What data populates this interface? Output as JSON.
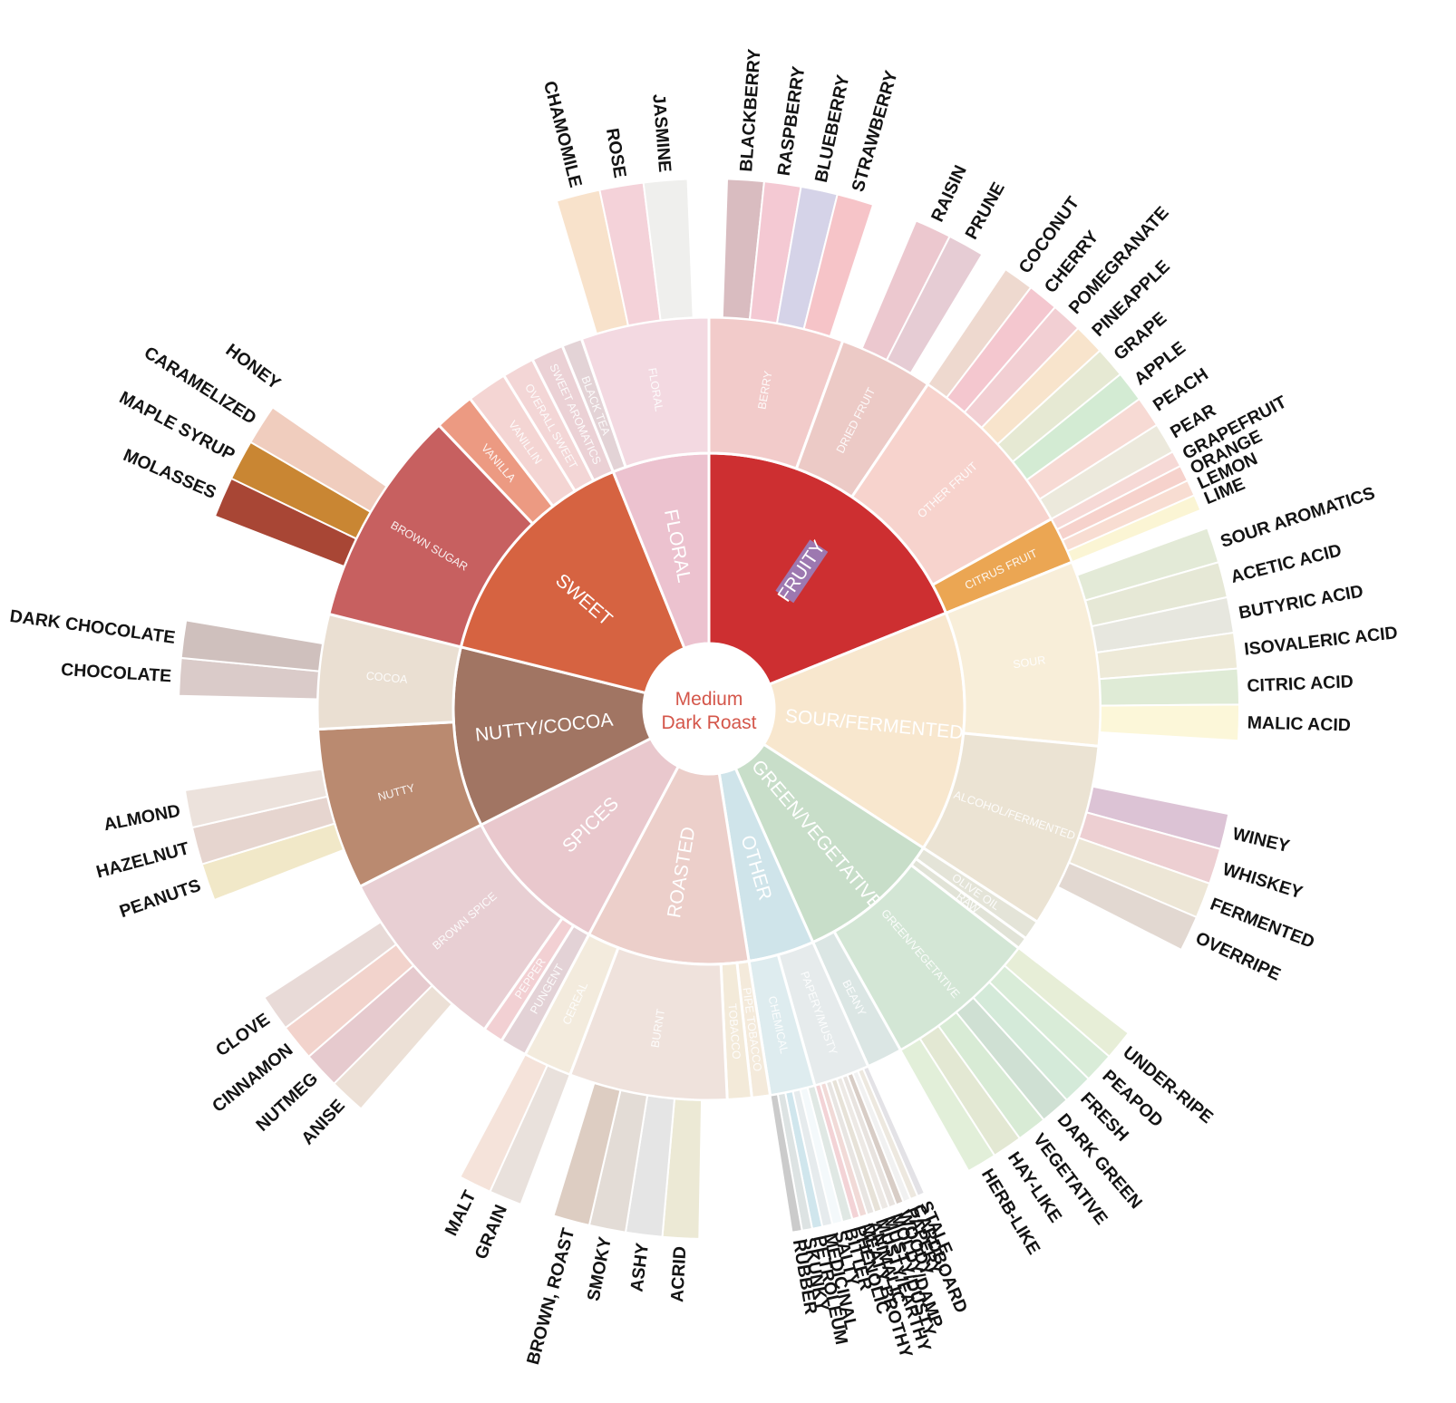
{
  "center": {
    "line1": "Medium",
    "line2": "Dark Roast"
  },
  "wheel": [
    {
      "name": "FRUITY",
      "color": "#cd2f31",
      "highlight": true,
      "highlight_color": "#9d78b0",
      "subs": [
        {
          "name": "BERRY",
          "color": "#f2cbca",
          "leaves": [
            {
              "name": "BLACKBERRY",
              "color": "#d9bcc0"
            },
            {
              "name": "RASPBERRY",
              "color": "#f4c9d3"
            },
            {
              "name": "BLUEBERRY",
              "color": "#d5d3e8"
            },
            {
              "name": "STRAWBERRY",
              "color": "#f6c4c8"
            }
          ]
        },
        {
          "name": "DRIED FRUIT",
          "color": "#eccac6",
          "leaves": [
            {
              "name": "RAISIN",
              "color": "#ecc8cf"
            },
            {
              "name": "PRUNE",
              "color": "#e6ccd4"
            }
          ]
        },
        {
          "name": "OTHER FRUIT",
          "color": "#f7d3cd",
          "leaves": [
            {
              "name": "COCONUT",
              "color": "#eed9cf"
            },
            {
              "name": "CHERRY",
              "color": "#f4c7cf"
            },
            {
              "name": "POMEGRANATE",
              "color": "#f2cfd3"
            },
            {
              "name": "PINEAPPLE",
              "color": "#f8e4cc"
            },
            {
              "name": "GRAPE",
              "color": "#e6e9d3"
            },
            {
              "name": "APPLE",
              "color": "#d3ebd3"
            },
            {
              "name": "PEACH",
              "color": "#f7dad4"
            },
            {
              "name": "PEAR",
              "color": "#ece9dc"
            }
          ]
        },
        {
          "name": "CITRUS FRUIT",
          "color": "#eba653",
          "leaves": [
            {
              "name": "GRAPEFRUIT",
              "color": "#f6d9d6"
            },
            {
              "name": "ORANGE",
              "color": "#f6d2cc"
            },
            {
              "name": "LEMON",
              "color": "#f8ddd2"
            },
            {
              "name": "LIME",
              "color": "#fbf5d4"
            }
          ]
        }
      ]
    },
    {
      "name": "SOUR/FERMENTED",
      "color": "#f8e7ce",
      "subs": [
        {
          "name": "SOUR",
          "color": "#f8eed9",
          "leaves": [
            {
              "name": "SOUR AROMATICS",
              "color": "#e3ead7"
            },
            {
              "name": "ACETIC ACID",
              "color": "#e6e8d6"
            },
            {
              "name": "BUTYRIC ACID",
              "color": "#e7e7df"
            },
            {
              "name": "ISOVALERIC ACID",
              "color": "#eeead8"
            },
            {
              "name": "CITRIC ACID",
              "color": "#dfebd6"
            },
            {
              "name": "MALIC ACID",
              "color": "#fcf7d9"
            }
          ]
        },
        {
          "name": "ALCOHOL/FERMENTED",
          "color": "#ebe3d3",
          "leaves": [
            {
              "name": "WINEY",
              "color": "#dcc3d5"
            },
            {
              "name": "WHISKEY",
              "color": "#edcfd2"
            },
            {
              "name": "FERMENTED",
              "color": "#ede6d6"
            },
            {
              "name": "OVERRIPE",
              "color": "#e2d8d1"
            }
          ]
        }
      ]
    },
    {
      "name": "GREEN/VEGETATIVE",
      "color": "#c8dec9",
      "subs": [
        {
          "name": "OLIVE OIL",
          "color": "#e4e4d8",
          "leaves": []
        },
        {
          "name": "RAW",
          "color": "#e1e3d7",
          "leaves": []
        },
        {
          "name": "GREEN/VEGETATIVE",
          "color": "#d3e6d5",
          "leaves": [
            {
              "name": "UNDER-RIPE",
              "color": "#e7eed7"
            },
            {
              "name": "PEAPOD",
              "color": "#d9ecd8"
            },
            {
              "name": "FRESH",
              "color": "#d4ead9"
            },
            {
              "name": "DARK GREEN",
              "color": "#cfe0d3"
            },
            {
              "name": "VEGETATIVE",
              "color": "#d8ebd5"
            },
            {
              "name": "HAY-LIKE",
              "color": "#e3e8d3"
            },
            {
              "name": "HERB-LIKE",
              "color": "#e2efd9"
            }
          ]
        },
        {
          "name": "BEANY",
          "color": "#dbe6e4",
          "leaves": []
        }
      ]
    },
    {
      "name": "OTHER",
      "color": "#cfe4ea",
      "subs": [
        {
          "name": "PAPERY/MUSTY",
          "color": "#e6ebec",
          "leaves": [
            {
              "name": "STALE",
              "color": "#e3e2e6"
            },
            {
              "name": "CARDBOARD",
              "color": "#ede8df"
            },
            {
              "name": "PAPERY",
              "color": "#f1f1f1"
            },
            {
              "name": "WOODY",
              "color": "#d8cdc6"
            },
            {
              "name": "MOLDY/DAMP",
              "color": "#e8e3df"
            },
            {
              "name": "MUSTY/DUSTY",
              "color": "#ede9e5"
            },
            {
              "name": "MUSTY/EARTHY",
              "color": "#e7e2d8"
            },
            {
              "name": "ANIMALIC",
              "color": "#e8e5e2"
            },
            {
              "name": "MEATY BROTHY",
              "color": "#f1dad7"
            },
            {
              "name": "PHENOLIC",
              "color": "#f3d3d6"
            }
          ]
        },
        {
          "name": "CHEMICAL",
          "color": "#deecef",
          "leaves": [
            {
              "name": "BITTER",
              "color": "#e0e8e4"
            },
            {
              "name": "SALTY",
              "color": "#f4f9fb"
            },
            {
              "name": "MEDICINAL",
              "color": "#e6ebed"
            },
            {
              "name": "PETROLEUM",
              "color": "#d0e6ed"
            },
            {
              "name": "SKUNKY",
              "color": "#dde3e3"
            },
            {
              "name": "RUBBER",
              "color": "#cbcbcb"
            }
          ]
        }
      ]
    },
    {
      "name": "ROASTED",
      "color": "#eccfca",
      "subs": [
        {
          "name": "PIPE TOBACCO",
          "color": "#f4eadb",
          "leaves": []
        },
        {
          "name": "TOBACCO",
          "color": "#f3ead9",
          "leaves": []
        },
        {
          "name": "BURNT",
          "color": "#efe2dc",
          "leaves": [
            {
              "name": "ACRID",
              "color": "#ece9d5"
            },
            {
              "name": "ASHY",
              "color": "#e5e5e5"
            },
            {
              "name": "SMOKY",
              "color": "#e3dcd6"
            },
            {
              "name": "BROWN, ROAST",
              "color": "#ddcdc2"
            }
          ]
        },
        {
          "name": "CEREAL",
          "color": "#f3ebdd",
          "leaves": [
            {
              "name": "GRAIN",
              "color": "#e9e1dc"
            },
            {
              "name": "MALT",
              "color": "#f5e3da"
            }
          ]
        }
      ]
    },
    {
      "name": "SPICES",
      "color": "#e9c8cd",
      "subs": [
        {
          "name": "PUNGENT",
          "color": "#e3d2d6",
          "leaves": []
        },
        {
          "name": "PEPPER",
          "color": "#f2d0d3",
          "leaves": []
        },
        {
          "name": "BROWN SPICE",
          "color": "#e8cfd3",
          "leaves": [
            {
              "name": "ANISE",
              "color": "#ece0d6"
            },
            {
              "name": "NUTMEG",
              "color": "#e6cace"
            },
            {
              "name": "CINNAMON",
              "color": "#f2d3cc"
            },
            {
              "name": "CLOVE",
              "color": "#e8dad7"
            }
          ]
        }
      ]
    },
    {
      "name": "NUTTY/COCOA",
      "color": "#a17563",
      "subs": [
        {
          "name": "NUTTY",
          "color": "#ba8a70",
          "leaves": [
            {
              "name": "PEANUTS",
              "color": "#f1e8c8"
            },
            {
              "name": "HAZELNUT",
              "color": "#e6d5cf"
            },
            {
              "name": "ALMOND",
              "color": "#ece2dc"
            }
          ]
        },
        {
          "name": "COCOA",
          "color": "#eadfd2",
          "leaves": [
            {
              "name": "CHOCOLATE",
              "color": "#dacbc9"
            },
            {
              "name": "DARK CHOCOLATE",
              "color": "#cfc0bd"
            }
          ]
        }
      ]
    },
    {
      "name": "SWEET",
      "color": "#d66341",
      "subs": [
        {
          "name": "BROWN SUGAR",
          "color": "#c76060",
          "leaves": [
            {
              "name": "MOLASSES",
              "color": "#a84635"
            },
            {
              "name": "MAPLE SYRUP",
              "color": "#c98633"
            },
            {
              "name": "CARAMELIZED",
              "color": "#f0cdbe"
            },
            {
              "name": "HONEY",
              "color": "#ffffff"
            }
          ]
        },
        {
          "name": "VANILLA",
          "color": "#ec9a82",
          "leaves": []
        },
        {
          "name": "VANILLIN",
          "color": "#f4d5d3",
          "leaves": []
        },
        {
          "name": "OVERALL SWEET",
          "color": "#f3d6d6",
          "leaves": []
        },
        {
          "name": "SWEET AROMATICS",
          "color": "#ebd1d5",
          "leaves": []
        }
      ]
    },
    {
      "name": "FLORAL",
      "color": "#ecc2cf",
      "subs": [
        {
          "name": "BLACK TEA",
          "color": "#e3d3d6",
          "leaves": []
        },
        {
          "name": "FLORAL",
          "color": "#f3d9e1",
          "leaves": [
            {
              "name": "CHAMOMILE",
              "color": "#f8e2cb"
            },
            {
              "name": "ROSE",
              "color": "#f4d2d9"
            },
            {
              "name": "JASMINE",
              "color": "#efefed"
            }
          ]
        }
      ]
    }
  ]
}
